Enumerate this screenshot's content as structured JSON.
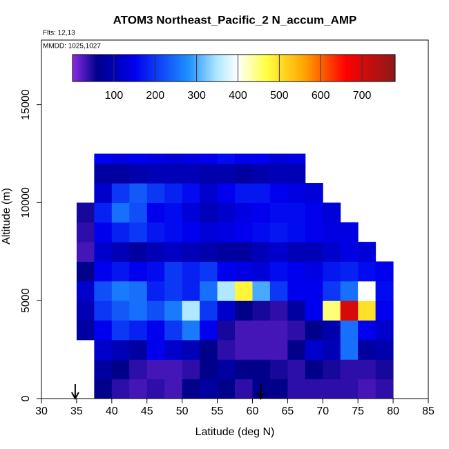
{
  "chart_data": {
    "type": "heatmap",
    "title": "ATOM3 Northeast_Pacific_2 N_accum_AMP",
    "annotations": [
      "Flts: 12,13",
      "MMDD: 1025,1027"
    ],
    "x_label": "Latitude (deg N)",
    "y_label": "Altitude (m)",
    "xlim": [
      30,
      85
    ],
    "ylim": [
      0,
      18300
    ],
    "xticks": [
      30,
      35,
      40,
      45,
      50,
      55,
      60,
      65,
      70,
      75,
      80,
      85
    ],
    "yticks": [
      0,
      5000,
      10000,
      15000
    ],
    "x_bins": [
      35,
      37.5,
      40,
      42.5,
      45,
      47.5,
      50,
      52.5,
      55,
      57.5,
      60,
      62.5,
      65,
      67.5,
      70,
      72.5,
      75,
      77.5,
      80
    ],
    "y_bins": [
      0,
      1000,
      2000,
      3000,
      4000,
      5000,
      6000,
      7000,
      8000,
      9000,
      10000,
      11000,
      12000,
      12500
    ],
    "values": [
      [
        null,
        60,
        40,
        30,
        40,
        30,
        60,
        80,
        60,
        40,
        60,
        60,
        40,
        40,
        40,
        40,
        30,
        40
      ],
      [
        null,
        80,
        60,
        40,
        30,
        30,
        40,
        60,
        80,
        60,
        60,
        50,
        40,
        60,
        50,
        40,
        40,
        50
      ],
      [
        null,
        120,
        100,
        80,
        150,
        120,
        100,
        60,
        40,
        30,
        30,
        30,
        60,
        120,
        100,
        250,
        80,
        90
      ],
      [
        80,
        150,
        200,
        180,
        150,
        200,
        260,
        150,
        50,
        30,
        30,
        30,
        40,
        60,
        90,
        250,
        150,
        120
      ],
      [
        100,
        200,
        230,
        250,
        220,
        260,
        350,
        200,
        120,
        60,
        50,
        40,
        80,
        150,
        450,
        700,
        500,
        150
      ],
      [
        120,
        220,
        260,
        250,
        180,
        200,
        180,
        250,
        350,
        480,
        300,
        200,
        150,
        150,
        200,
        250,
        400,
        160
      ],
      [
        60,
        150,
        170,
        150,
        160,
        200,
        180,
        200,
        150,
        140,
        130,
        160,
        150,
        140,
        170,
        180,
        160,
        150
      ],
      [
        30,
        120,
        100,
        80,
        100,
        110,
        100,
        90,
        80,
        80,
        100,
        120,
        100,
        100,
        120,
        140,
        130,
        null
      ],
      [
        40,
        150,
        180,
        200,
        170,
        160,
        150,
        130,
        140,
        150,
        160,
        170,
        160,
        150,
        140,
        140,
        null,
        null
      ],
      [
        50,
        180,
        250,
        220,
        150,
        160,
        130,
        100,
        120,
        140,
        150,
        160,
        160,
        150,
        130,
        null,
        null,
        null
      ],
      [
        null,
        120,
        200,
        230,
        200,
        180,
        160,
        120,
        150,
        170,
        170,
        150,
        140,
        130,
        null,
        null,
        null,
        null
      ],
      [
        null,
        80,
        80,
        90,
        100,
        100,
        100,
        90,
        90,
        80,
        90,
        100,
        100,
        null,
        null,
        null,
        null,
        null
      ],
      [
        null,
        150,
        140,
        150,
        140,
        130,
        140,
        150,
        160,
        150,
        150,
        130,
        140,
        null,
        null,
        null,
        null,
        null
      ]
    ],
    "arrows": [
      34.8,
      61.2
    ],
    "colorbar": {
      "range": [
        0,
        780
      ],
      "ticks": [
        100,
        200,
        300,
        400,
        500,
        600,
        700
      ],
      "stops": [
        [
          0,
          "#8a2be2"
        ],
        [
          60,
          "#00008b"
        ],
        [
          150,
          "#0000ee"
        ],
        [
          280,
          "#1e90ff"
        ],
        [
          350,
          "#b0e8ff"
        ],
        [
          400,
          "#ffffff"
        ],
        [
          470,
          "#ffff40"
        ],
        [
          560,
          "#ffa500"
        ],
        [
          660,
          "#ff0000"
        ],
        [
          780,
          "#8b1a1a"
        ]
      ]
    }
  }
}
